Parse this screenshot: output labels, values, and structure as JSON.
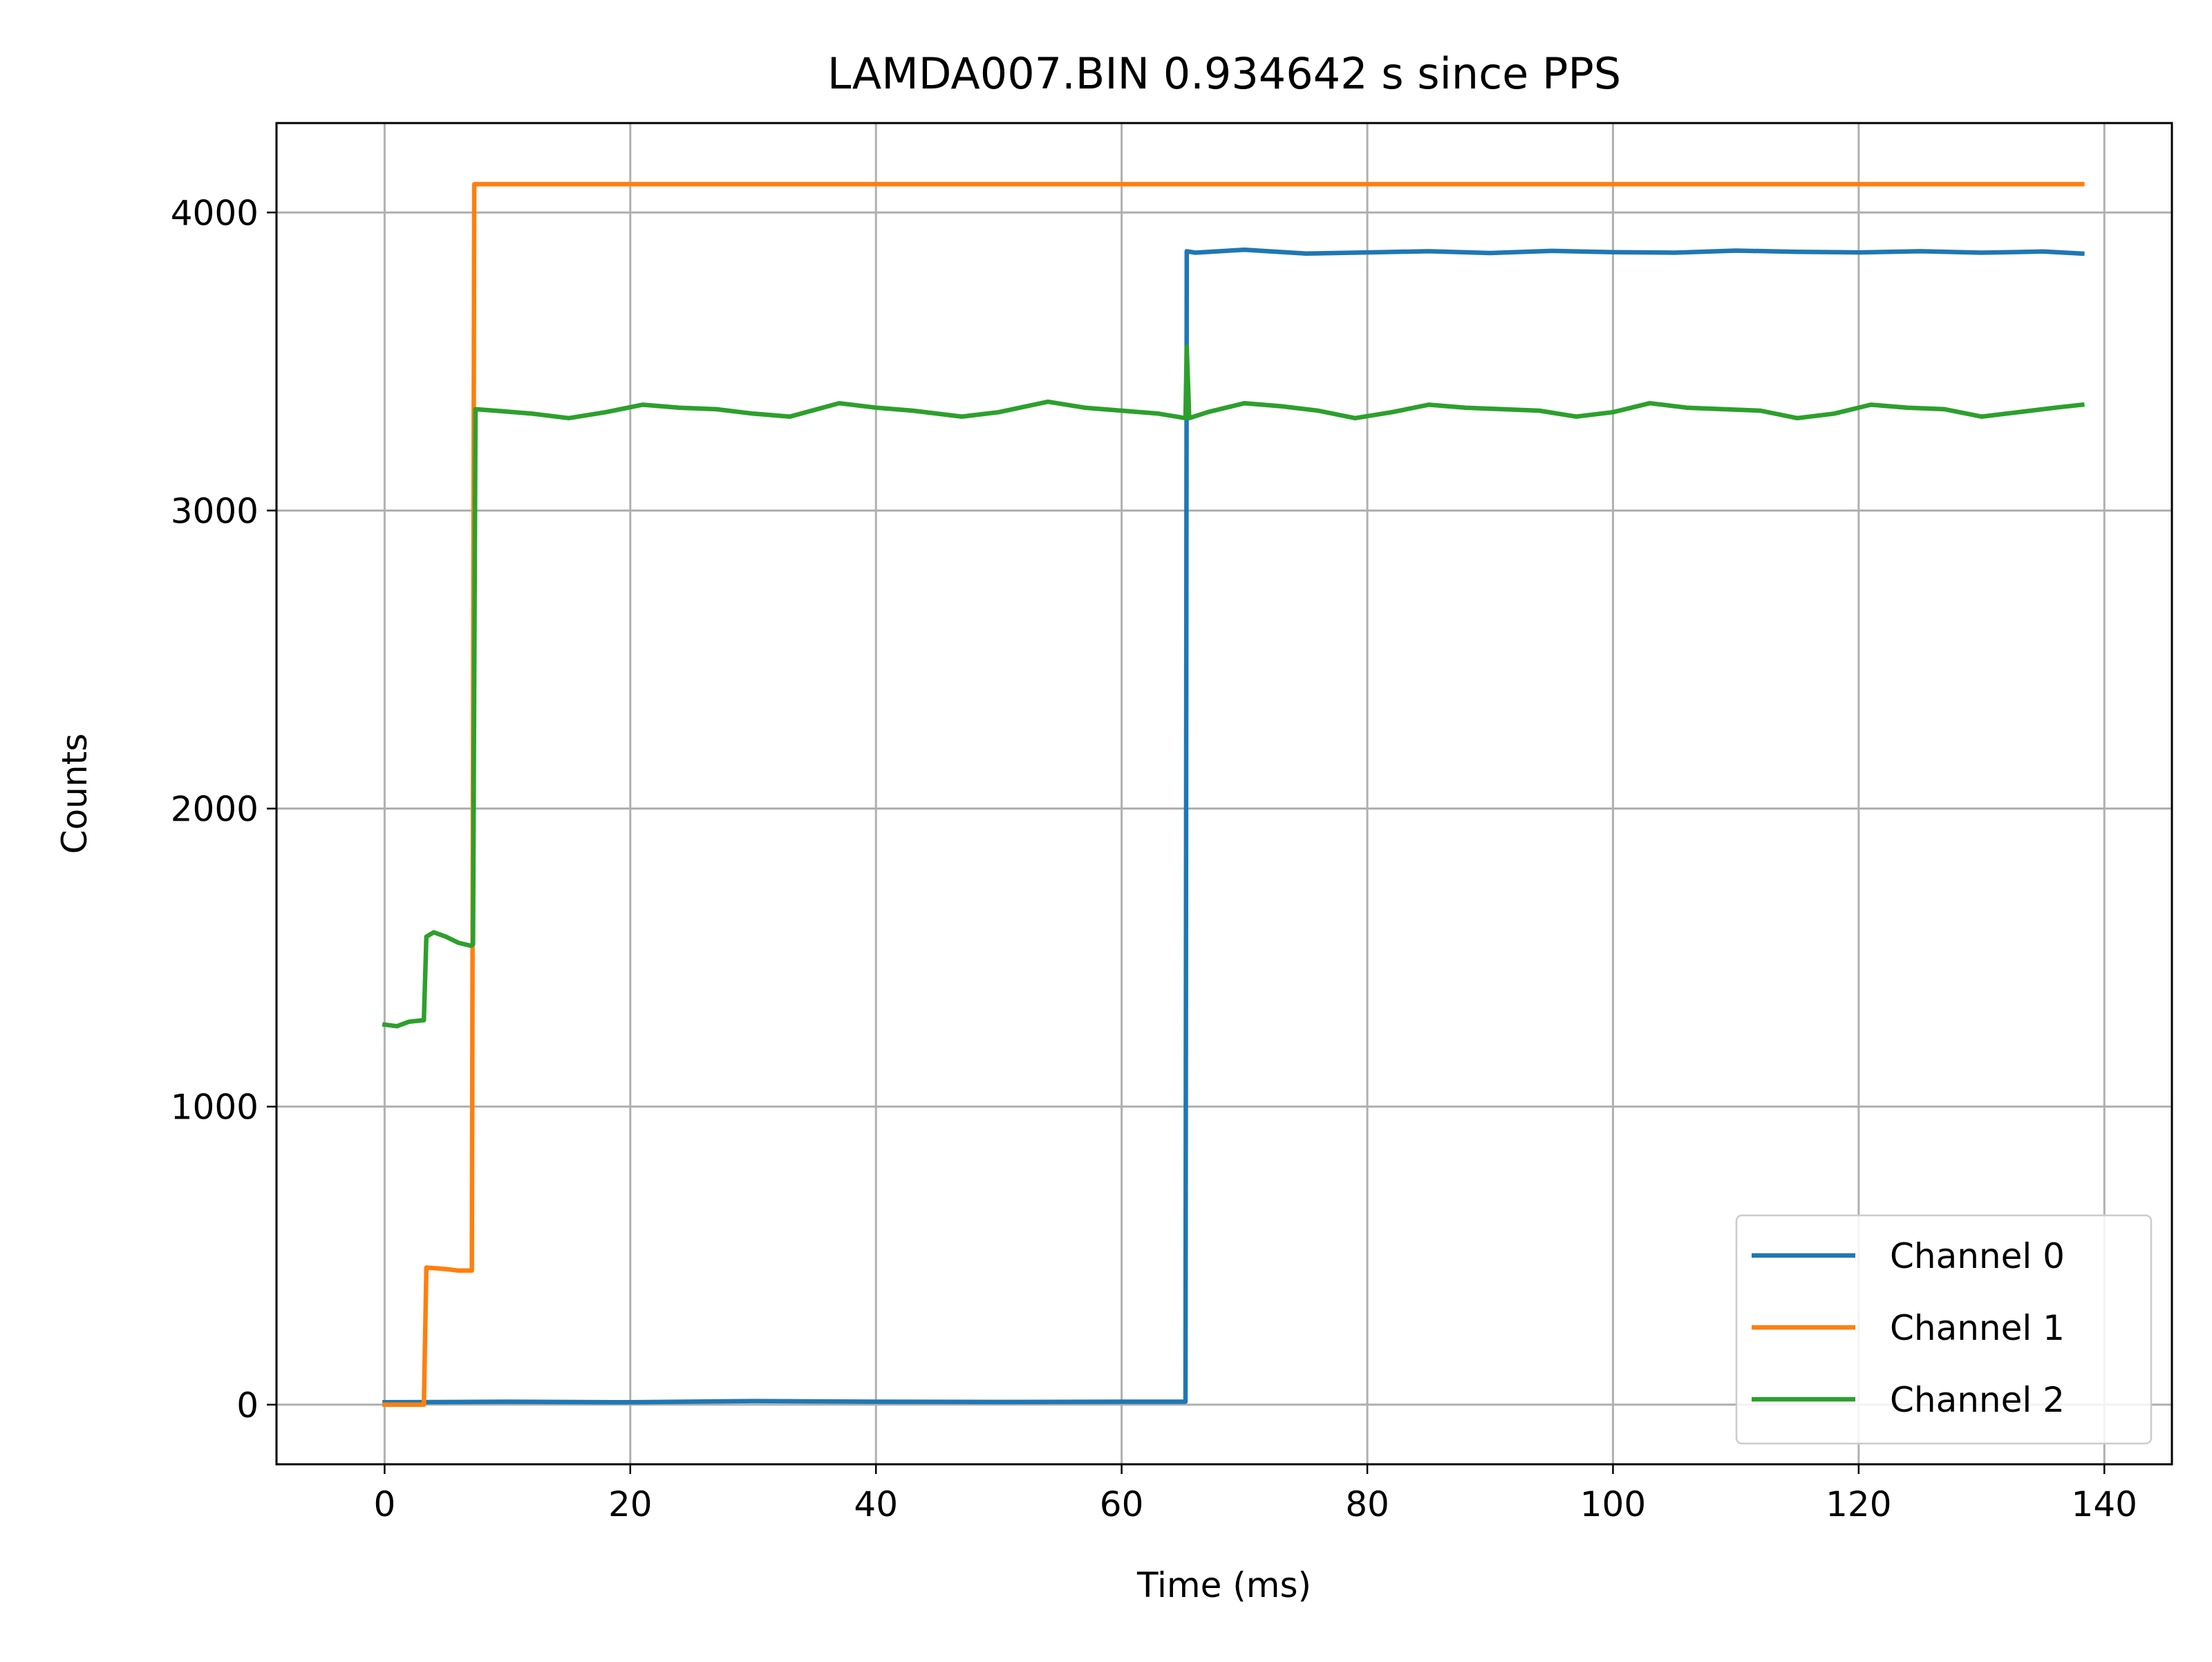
{
  "chart_data": {
    "type": "line",
    "title": "LAMDA007.BIN 0.934642 s since PPS",
    "xlabel": "Time (ms)",
    "ylabel": "Counts",
    "xlim": [
      -8.8,
      145.5
    ],
    "ylim": [
      -200,
      4300
    ],
    "xticks": [
      0,
      20,
      40,
      60,
      80,
      100,
      120,
      140
    ],
    "xtick_labels": [
      "0",
      "20",
      "40",
      "60",
      "80",
      "100",
      "120",
      "140"
    ],
    "yticks": [
      0,
      1000,
      2000,
      3000,
      4000
    ],
    "ytick_labels": [
      "0",
      "1000",
      "2000",
      "3000",
      "4000"
    ],
    "grid": true,
    "legend_position": "lower-right",
    "series": [
      {
        "name": "Channel 0",
        "color": "#1f77b4",
        "x": [
          0,
          10,
          20,
          30,
          40,
          50,
          60,
          65.2,
          65.3,
          66,
          70,
          75,
          80,
          85,
          90,
          95,
          100,
          105,
          110,
          115,
          120,
          125,
          130,
          135,
          138.2
        ],
        "y": [
          8,
          10,
          8,
          12,
          10,
          9,
          10,
          10,
          3870,
          3865,
          3875,
          3862,
          3866,
          3870,
          3864,
          3871,
          3867,
          3865,
          3872,
          3868,
          3866,
          3870,
          3865,
          3869,
          3862
        ]
      },
      {
        "name": "Channel 1",
        "color": "#ff7f0e",
        "x": [
          0,
          3.2,
          3.4,
          5,
          6,
          7.1,
          7.3,
          10,
          20,
          40,
          60,
          80,
          100,
          120,
          138.2
        ],
        "y": [
          0,
          0,
          460,
          455,
          450,
          450,
          4095,
          4095,
          4095,
          4095,
          4095,
          4095,
          4095,
          4095,
          4095
        ]
      },
      {
        "name": "Channel 2",
        "color": "#2ca02c",
        "x": [
          0,
          1,
          2,
          3.2,
          3.4,
          4,
          5,
          6,
          7,
          7.2,
          7.4,
          9,
          12,
          15,
          18,
          21,
          24,
          27,
          30,
          33,
          37,
          40,
          43,
          47,
          50,
          54,
          57,
          60,
          63,
          65.2,
          65.3,
          65.5,
          67,
          70,
          73,
          76,
          79,
          82,
          85,
          88,
          91,
          94,
          97,
          100,
          103,
          106,
          109,
          112,
          115,
          118,
          121,
          124,
          127,
          130,
          133,
          136,
          138.2
        ],
        "y": [
          1275,
          1270,
          1285,
          1290,
          1570,
          1585,
          1570,
          1550,
          1540,
          1545,
          3340,
          3335,
          3325,
          3310,
          3330,
          3355,
          3345,
          3340,
          3325,
          3315,
          3360,
          3345,
          3335,
          3315,
          3330,
          3365,
          3345,
          3335,
          3325,
          3310,
          3550,
          3310,
          3330,
          3360,
          3350,
          3335,
          3310,
          3330,
          3355,
          3345,
          3340,
          3335,
          3315,
          3330,
          3360,
          3345,
          3340,
          3335,
          3310,
          3325,
          3355,
          3345,
          3340,
          3315,
          3330,
          3345,
          3355
        ]
      }
    ]
  }
}
